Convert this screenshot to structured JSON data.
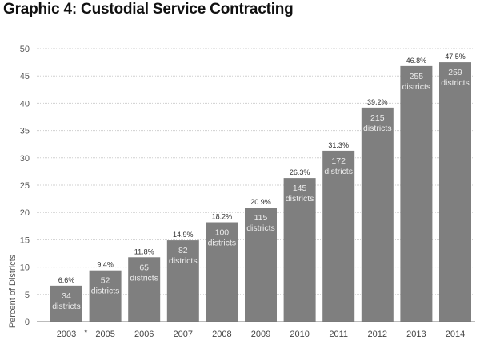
{
  "chart_data": {
    "type": "bar",
    "title": "Graphic 4: Custodial Service Contracting",
    "xlabel": "",
    "ylabel": "Percent of Districts",
    "ylim": [
      0,
      50
    ],
    "yticks": [
      0,
      5,
      10,
      15,
      20,
      25,
      30,
      35,
      40,
      45,
      50
    ],
    "grid": true,
    "categories": [
      "2003",
      "2005",
      "2006",
      "2007",
      "2008",
      "2009",
      "2010",
      "2011",
      "2012",
      "2013",
      "2014"
    ],
    "values": [
      6.6,
      9.4,
      11.8,
      14.9,
      18.2,
      20.9,
      26.3,
      31.3,
      39.2,
      46.8,
      47.5
    ],
    "value_labels": [
      "6.6%",
      "9.4%",
      "11.8%",
      "14.9%",
      "18.2%",
      "20.9%",
      "26.3%",
      "31.3%",
      "39.2%",
      "46.8%",
      "47.5%"
    ],
    "district_counts": [
      34,
      52,
      65,
      82,
      100,
      115,
      145,
      172,
      215,
      255,
      259
    ],
    "district_unit": "districts",
    "gap_marker": "*",
    "colors": {
      "bar": "#7f7f7f",
      "bar_text": "#ececec",
      "grid": "#cfcfcf"
    }
  }
}
